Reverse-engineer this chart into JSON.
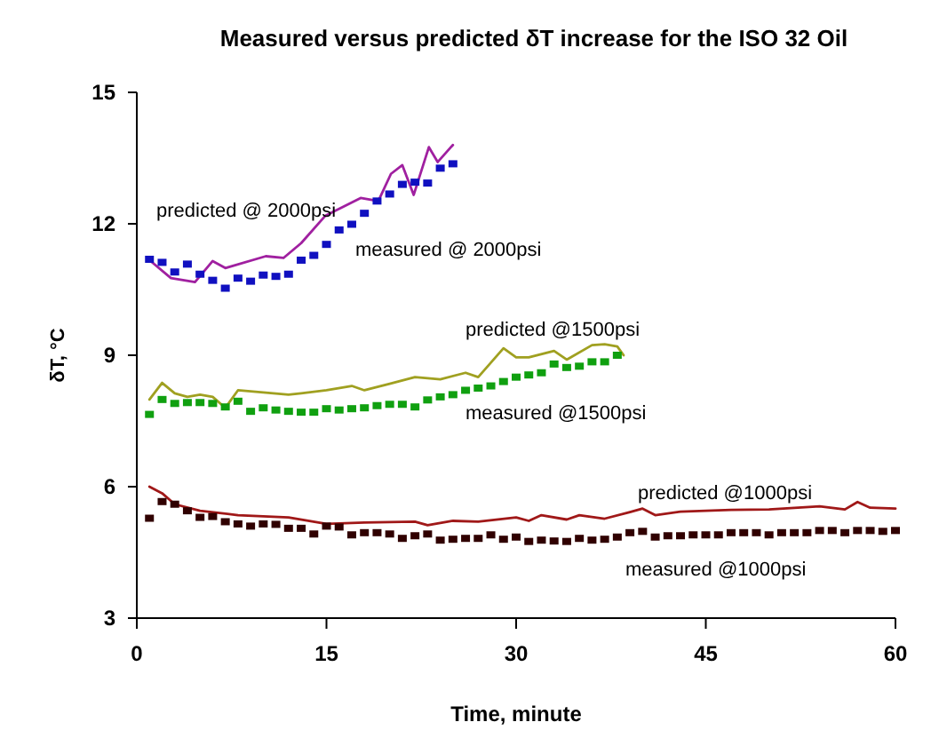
{
  "chart_data": {
    "type": "line",
    "title": "Measured versus predicted δT increase for the ISO 32 Oil",
    "xlabel": "Time, minute",
    "ylabel": "δT, °C",
    "xlim": [
      0,
      60
    ],
    "xticks": [
      0,
      15,
      30,
      45,
      60
    ],
    "ylim": [
      3,
      15
    ],
    "yticks": [
      3,
      6,
      9,
      12,
      15
    ],
    "grid": false,
    "series": [
      {
        "name": "predicted @ 2000psi",
        "color": "#a020a0",
        "x": [
          0.8,
          2.7,
          4.6,
          6.0,
          7.0,
          10.2,
          11.6,
          13.0,
          14.9,
          17.7,
          19.1,
          20.1,
          21.0,
          21.9,
          23.1,
          23.8,
          25.0
        ],
        "values": [
          11.22,
          10.76,
          10.67,
          11.15,
          10.99,
          11.26,
          11.22,
          11.56,
          12.18,
          12.59,
          12.52,
          13.14,
          13.34,
          12.66,
          13.75,
          13.41,
          13.8
        ]
      },
      {
        "name": "measured @ 2000psi",
        "type": "scatter",
        "marker": "square",
        "color": "#1010c0",
        "x": [
          1,
          2,
          3,
          4,
          5,
          6,
          7,
          8,
          9,
          10,
          11,
          12,
          13,
          14,
          15,
          16,
          17,
          18,
          19,
          20,
          21,
          22,
          23,
          24,
          25
        ],
        "values": [
          11.19,
          11.12,
          10.9,
          11.08,
          10.85,
          10.71,
          10.53,
          10.76,
          10.69,
          10.83,
          10.8,
          10.85,
          11.17,
          11.28,
          11.53,
          11.86,
          11.99,
          12.24,
          12.52,
          12.68,
          12.9,
          12.95,
          12.93,
          13.27,
          13.37
        ]
      },
      {
        "name": "predicted @1500psi",
        "color": "#a0a020",
        "x": [
          1,
          2,
          3,
          4,
          5,
          6,
          7,
          8,
          10,
          12,
          13,
          15,
          17,
          18,
          20,
          22,
          24,
          26,
          27,
          29,
          30,
          31,
          33,
          34,
          36,
          37,
          38,
          38.5
        ],
        "values": [
          7.99,
          8.37,
          8.13,
          8.05,
          8.1,
          8.05,
          7.8,
          8.2,
          8.15,
          8.1,
          8.13,
          8.2,
          8.3,
          8.2,
          8.35,
          8.5,
          8.45,
          8.6,
          8.5,
          9.16,
          8.95,
          8.95,
          9.1,
          8.9,
          9.23,
          9.25,
          9.2,
          9.0
        ]
      },
      {
        "name": "measured @1500psi",
        "type": "scatter",
        "marker": "square",
        "color": "#10a010",
        "x": [
          1,
          2,
          3,
          4,
          5,
          6,
          7,
          8,
          9,
          10,
          11,
          12,
          13,
          14,
          15,
          16,
          17,
          18,
          19,
          20,
          21,
          22,
          23,
          24,
          25,
          26,
          27,
          28,
          29,
          30,
          31,
          32,
          33,
          34,
          35,
          36,
          37,
          38
        ],
        "values": [
          7.65,
          7.99,
          7.9,
          7.92,
          7.92,
          7.9,
          7.82,
          7.95,
          7.72,
          7.8,
          7.75,
          7.72,
          7.7,
          7.7,
          7.78,
          7.75,
          7.78,
          7.8,
          7.85,
          7.88,
          7.88,
          7.82,
          7.98,
          8.05,
          8.1,
          8.2,
          8.25,
          8.3,
          8.4,
          8.5,
          8.55,
          8.6,
          8.8,
          8.72,
          8.75,
          8.85,
          8.85,
          9.0
        ]
      },
      {
        "name": "predicted @1000psi",
        "color": "#a01818",
        "x": [
          1,
          2,
          3,
          5,
          8,
          12,
          15,
          18,
          22,
          23,
          25,
          27,
          30,
          31,
          32,
          34,
          35,
          37,
          39,
          40,
          41,
          43,
          47,
          50,
          54,
          56,
          57,
          58,
          60
        ],
        "values": [
          6.0,
          5.85,
          5.6,
          5.45,
          5.35,
          5.3,
          5.15,
          5.18,
          5.2,
          5.12,
          5.22,
          5.2,
          5.3,
          5.22,
          5.35,
          5.25,
          5.35,
          5.27,
          5.42,
          5.5,
          5.35,
          5.43,
          5.47,
          5.48,
          5.55,
          5.48,
          5.65,
          5.52,
          5.5
        ]
      },
      {
        "name": "measured @1000psi",
        "type": "scatter",
        "marker": "square",
        "color": "#300000",
        "x": [
          1,
          2,
          3,
          4,
          5,
          6,
          7,
          8,
          9,
          10,
          11,
          12,
          13,
          14,
          15,
          16,
          17,
          18,
          19,
          20,
          21,
          22,
          23,
          24,
          25,
          26,
          27,
          28,
          29,
          30,
          31,
          32,
          33,
          34,
          35,
          36,
          37,
          38,
          39,
          40,
          41,
          42,
          43,
          44,
          45,
          46,
          47,
          48,
          49,
          50,
          51,
          52,
          53,
          54,
          55,
          56,
          57,
          58,
          59,
          60
        ],
        "values": [
          5.28,
          5.66,
          5.6,
          5.45,
          5.3,
          5.32,
          5.2,
          5.15,
          5.1,
          5.15,
          5.14,
          5.05,
          5.05,
          4.92,
          5.1,
          5.08,
          4.9,
          4.95,
          4.95,
          4.92,
          4.82,
          4.88,
          4.92,
          4.78,
          4.8,
          4.82,
          4.82,
          4.9,
          4.8,
          4.85,
          4.75,
          4.78,
          4.76,
          4.75,
          4.82,
          4.78,
          4.8,
          4.85,
          4.95,
          4.98,
          4.85,
          4.88,
          4.88,
          4.9,
          4.9,
          4.9,
          4.95,
          4.95,
          4.95,
          4.9,
          4.95,
          4.95,
          4.95,
          5.0,
          5.0,
          4.95,
          5.0,
          5.0,
          4.98,
          5.0
        ]
      }
    ]
  }
}
